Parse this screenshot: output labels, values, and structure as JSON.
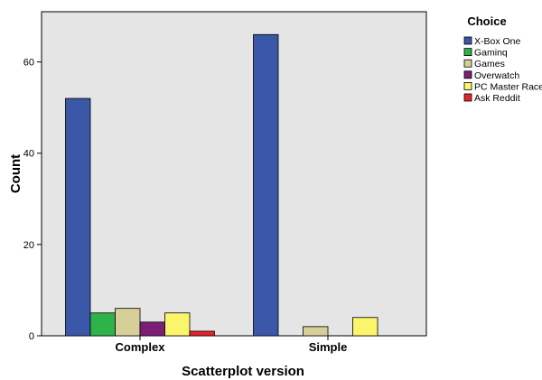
{
  "chart_data": {
    "type": "bar",
    "xlabel": "Scatterplot version",
    "ylabel": "Count",
    "ylim": [
      0,
      71
    ],
    "yticks": [
      0,
      20,
      40,
      60
    ],
    "categories": [
      "Complex",
      "Simple"
    ],
    "legend": {
      "title": "Choice",
      "placement": "right"
    },
    "plot_background": "#e5e5e5",
    "series": [
      {
        "name": "X-Box One",
        "color": "#3a57a8",
        "values": [
          52,
          66
        ]
      },
      {
        "name": "Gaminq",
        "color": "#2db34a",
        "values": [
          5,
          null
        ]
      },
      {
        "name": "Games",
        "color": "#d6cf99",
        "values": [
          6,
          2
        ]
      },
      {
        "name": "Overwatch",
        "color": "#7a1f74",
        "values": [
          3,
          null
        ]
      },
      {
        "name": "PC Master Race",
        "color": "#fbf56b",
        "values": [
          5,
          4
        ]
      },
      {
        "name": "Ask Reddit",
        "color": "#e8222a",
        "values": [
          1,
          null
        ]
      }
    ]
  }
}
